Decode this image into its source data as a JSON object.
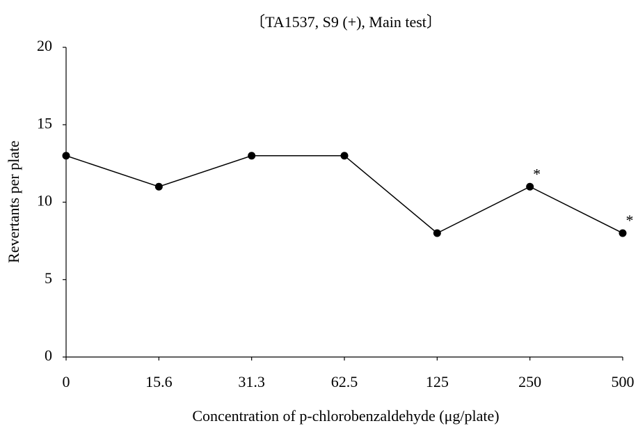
{
  "chart_data": {
    "type": "line",
    "title": "〔TA1537, S9 (+), Main test〕",
    "x_label": "Concentration of p-chlorobenzaldehyde (μg/plate)",
    "y_label": "Revertants per plate",
    "categories": [
      "0",
      "15.6",
      "31.3",
      "62.5",
      "125",
      "250",
      "500"
    ],
    "series": [
      {
        "name": "TA1537",
        "color": "#000000",
        "values": [
          13,
          11,
          13,
          13,
          8,
          11,
          8
        ]
      }
    ],
    "annotations": [
      {
        "x": "250",
        "text": "*"
      },
      {
        "x": "500",
        "text": "*"
      }
    ],
    "ylim": [
      0,
      20
    ],
    "yticks": [
      0,
      5,
      10,
      15,
      20
    ],
    "grid": false
  }
}
